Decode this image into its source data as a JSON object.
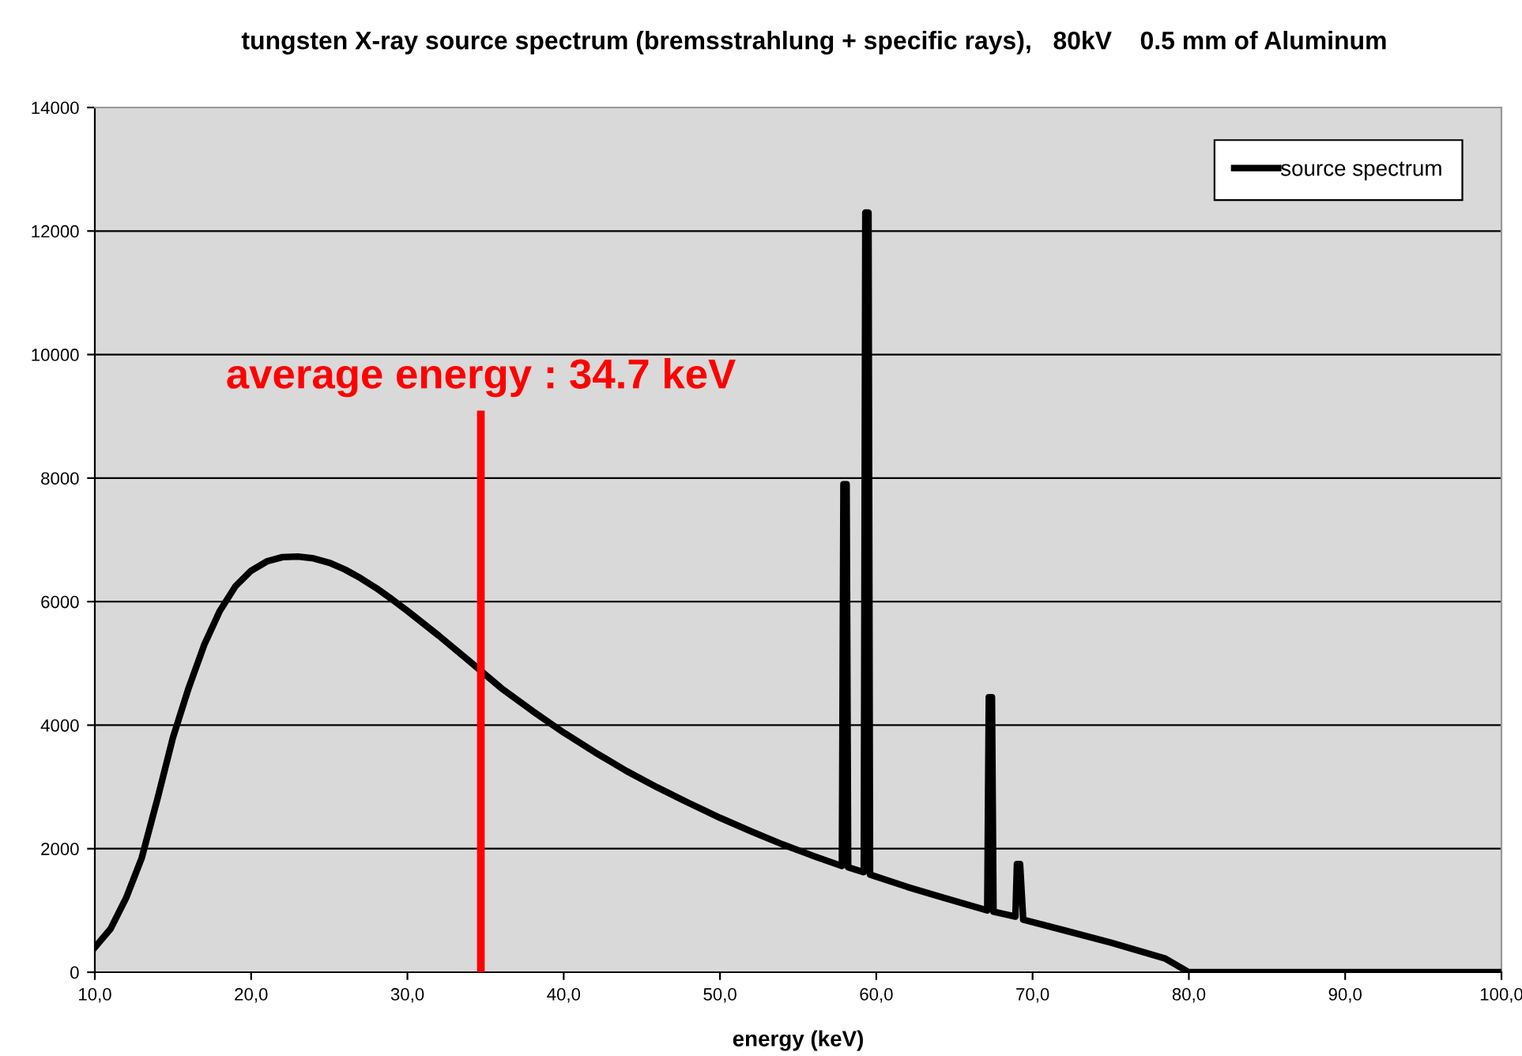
{
  "chart_data": {
    "type": "line",
    "title": "tungsten X-ray source spectrum (bremsstrahlung + specific rays),   80kV    0.5 mm of Aluminum",
    "xlabel": "energy (keV)",
    "x": [
      10,
      11,
      12,
      13,
      14,
      15,
      16,
      17,
      18,
      19,
      20,
      21,
      22,
      23,
      24,
      25,
      26,
      27,
      28,
      29,
      30,
      32,
      34,
      36,
      38,
      40,
      42,
      44,
      46,
      48,
      50,
      52,
      54,
      56,
      57.8,
      57.9,
      58.1,
      58.2,
      59.2,
      59.3,
      59.5,
      59.6,
      62,
      64,
      66,
      67.1,
      67.2,
      67.4,
      67.5,
      68.9,
      69.0,
      69.2,
      69.4,
      72,
      75,
      78.5,
      80,
      100
    ],
    "series": [
      {
        "name": "source spectrum",
        "color": "#000000",
        "values": [
          400,
          700,
          1200,
          1850,
          2800,
          3800,
          4600,
          5300,
          5850,
          6250,
          6500,
          6650,
          6720,
          6730,
          6700,
          6630,
          6520,
          6380,
          6220,
          6040,
          5850,
          5450,
          5030,
          4600,
          4230,
          3880,
          3560,
          3260,
          2990,
          2740,
          2500,
          2280,
          2070,
          1880,
          1720,
          7900,
          7900,
          1700,
          1620,
          12300,
          12300,
          1580,
          1380,
          1230,
          1080,
          1000,
          4450,
          4450,
          980,
          900,
          1750,
          1750,
          850,
          680,
          480,
          220,
          0,
          0
        ]
      }
    ],
    "xlim": [
      10,
      100
    ],
    "xticks": [
      {
        "value": 10,
        "label": "10,0"
      },
      {
        "value": 20,
        "label": "20,0"
      },
      {
        "value": 30,
        "label": "30,0"
      },
      {
        "value": 40,
        "label": "40,0"
      },
      {
        "value": 50,
        "label": "50,0"
      },
      {
        "value": 60,
        "label": "60,0"
      },
      {
        "value": 70,
        "label": "70,0"
      },
      {
        "value": 80,
        "label": "80,0"
      },
      {
        "value": 90,
        "label": "90,0"
      },
      {
        "value": 100,
        "label": "100,0"
      }
    ],
    "ylim": [
      0,
      14000
    ],
    "yticks": [
      0,
      2000,
      4000,
      6000,
      8000,
      10000,
      12000,
      14000
    ],
    "ref_lines": [
      {
        "axis": "x",
        "value": 34.7,
        "label": "average energy : 34.7 keV",
        "color": "#ff0000"
      }
    ],
    "grid": "y",
    "legend": "top right",
    "marker": "none",
    "line_style": "solid"
  }
}
